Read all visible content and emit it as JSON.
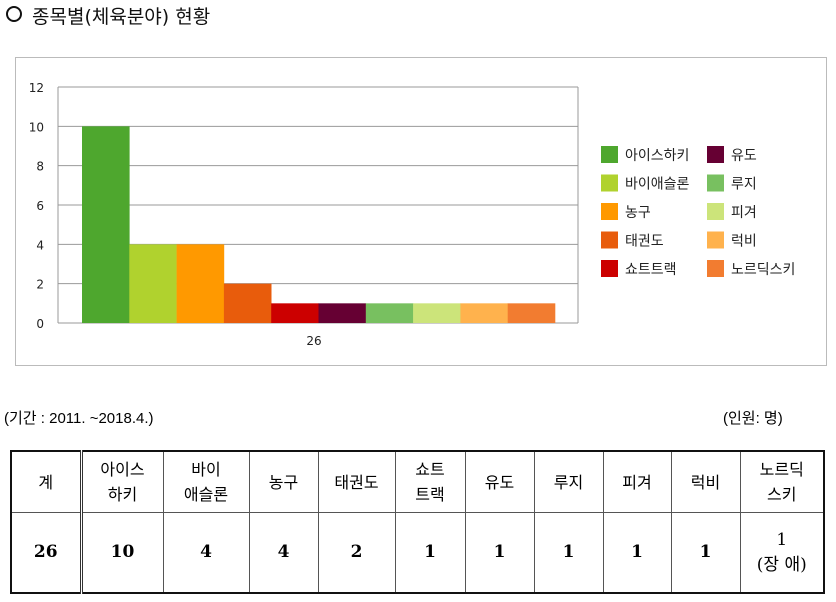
{
  "title": "종목별(체육분야) 현황",
  "period": "(기간 : 2011. ~2018.4.)",
  "unit": "(인원: 명)",
  "chart_data": {
    "type": "bar",
    "categories": [
      "26"
    ],
    "series": [
      {
        "name": "아이스하키",
        "values": [
          10
        ],
        "color": "#4ea72e"
      },
      {
        "name": "바이애슬론",
        "values": [
          4
        ],
        "color": "#b0d22e"
      },
      {
        "name": "농구",
        "values": [
          4
        ],
        "color": "#ff9900"
      },
      {
        "name": "태권도",
        "values": [
          2
        ],
        "color": "#e85c0c"
      },
      {
        "name": "쇼트트랙",
        "values": [
          1
        ],
        "color": "#cc0000"
      },
      {
        "name": "유도",
        "values": [
          1
        ],
        "color": "#660033"
      },
      {
        "name": "루지",
        "values": [
          1
        ],
        "color": "#78c060"
      },
      {
        "name": "피겨",
        "values": [
          1
        ],
        "color": "#cce47a"
      },
      {
        "name": "럭비",
        "values": [
          1
        ],
        "color": "#ffb24d"
      },
      {
        "name": "노르딕스키",
        "values": [
          1
        ],
        "color": "#f27c30"
      }
    ],
    "ylim": [
      0,
      12
    ],
    "yticks": [
      "0",
      "2",
      "4",
      "6",
      "8",
      "10",
      "12"
    ],
    "grid": true,
    "legend": "right"
  },
  "table": {
    "headers": [
      [
        "계"
      ],
      [
        "아이스",
        "하키"
      ],
      [
        "바이",
        "애슬론"
      ],
      [
        "농구"
      ],
      [
        "태권도"
      ],
      [
        "쇼트",
        "트랙"
      ],
      [
        "유도"
      ],
      [
        "루지"
      ],
      [
        "피겨"
      ],
      [
        "럭비"
      ],
      [
        "노르딕",
        "스키"
      ]
    ],
    "values": [
      [
        "26"
      ],
      [
        "10"
      ],
      [
        "4"
      ],
      [
        "4"
      ],
      [
        "2"
      ],
      [
        "1"
      ],
      [
        "1"
      ],
      [
        "1"
      ],
      [
        "1"
      ],
      [
        "1"
      ],
      [
        "1",
        "(장 애)"
      ]
    ]
  }
}
